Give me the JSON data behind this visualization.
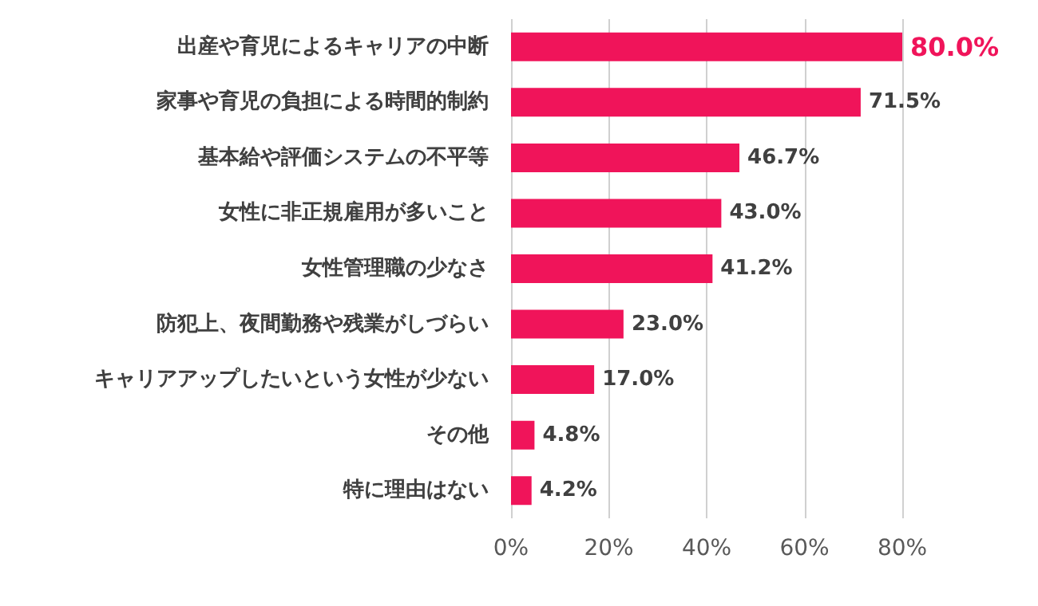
{
  "chart_data": {
    "type": "bar",
    "orientation": "horizontal",
    "categories": [
      "出産や育児によるキャリアの中断",
      "家事や育児の負担による時間的制約",
      "基本給や評価システムの不平等",
      "女性に非正規雇用が多いこと",
      "女性管理職の少なさ",
      "防犯上、夜間勤務や残業がしづらい",
      "キャリアアップしたいという女性が少ない",
      "その他",
      "特に理由はない"
    ],
    "values": [
      80.0,
      71.5,
      46.7,
      43.0,
      41.2,
      23.0,
      17.0,
      4.8,
      4.2
    ],
    "value_labels": [
      "80.0%",
      "71.5%",
      "46.7%",
      "43.0%",
      "41.2%",
      "23.0%",
      "17.0%",
      "4.8%",
      "4.2%"
    ],
    "color": "#f0145a",
    "xlim": [
      0,
      80
    ],
    "xticks": [
      {
        "value": 0,
        "label": "0%"
      },
      {
        "value": 20,
        "label": "20%"
      },
      {
        "value": 40,
        "label": "40%"
      },
      {
        "value": 60,
        "label": "60%"
      },
      {
        "value": 80,
        "label": "80%"
      }
    ],
    "grid": "x"
  }
}
